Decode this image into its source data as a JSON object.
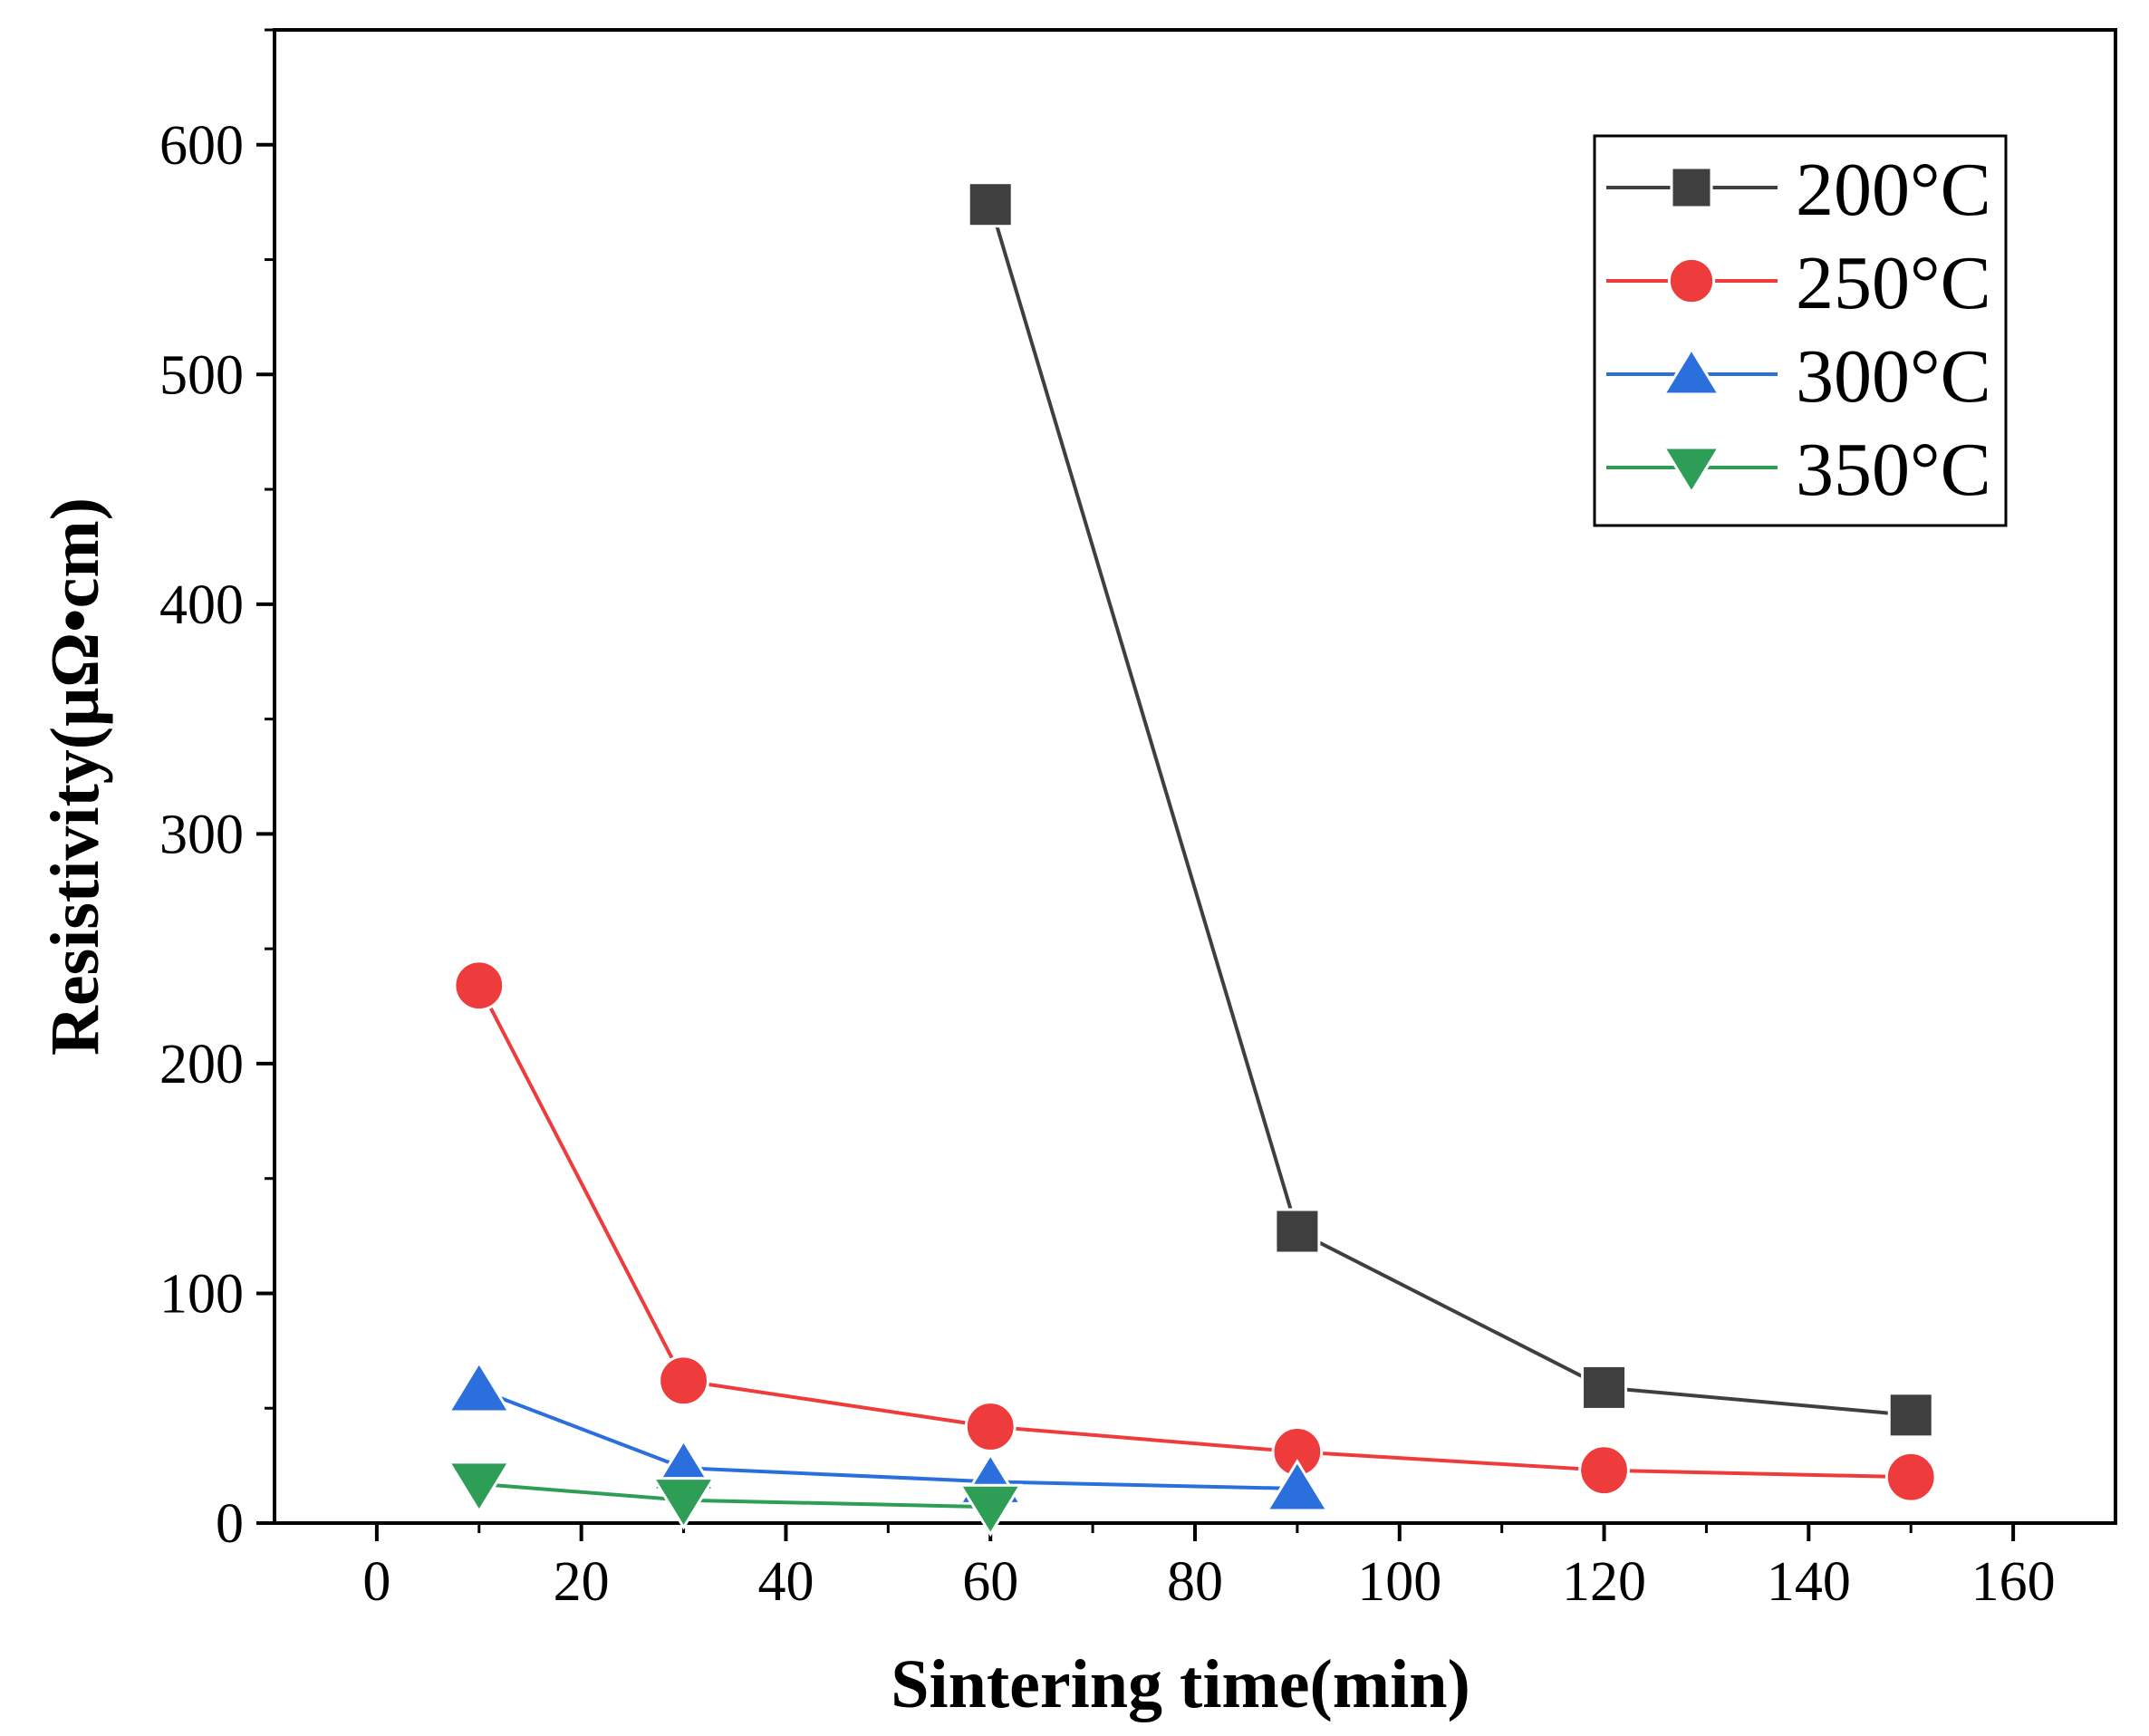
{
  "chart_data": {
    "type": "line",
    "title": "",
    "xlabel": "Sintering time(min)",
    "ylabel": "Resistivity(μΩ•cm)",
    "xlim": [
      -10,
      170
    ],
    "ylim": [
      0,
      650
    ],
    "xticks": [
      0,
      20,
      40,
      60,
      80,
      100,
      120,
      140,
      160
    ],
    "xtick_labels": [
      "0",
      "20",
      "40",
      "60",
      "80",
      "100",
      "120",
      "140",
      "160"
    ],
    "yticks": [
      0,
      100,
      200,
      300,
      400,
      500,
      600
    ],
    "ytick_labels": [
      "0",
      "100",
      "200",
      "300",
      "400",
      "500",
      "600"
    ],
    "grid": false,
    "legend_position": "top-right",
    "series": [
      {
        "name": "200°C",
        "color": "#3f3f3f",
        "marker": "square",
        "x": [
          60,
          90,
          120,
          150
        ],
        "values": [
          574,
          127,
          59,
          47
        ]
      },
      {
        "name": "250°C",
        "color": "#ee3b3b",
        "marker": "circle",
        "x": [
          10,
          30,
          60,
          90,
          120,
          150
        ],
        "values": [
          234,
          62,
          42,
          31,
          23,
          20
        ]
      },
      {
        "name": "300°C",
        "color": "#2a6fdb",
        "marker": "triangle-up",
        "x": [
          10,
          30,
          60,
          90
        ],
        "values": [
          58,
          24,
          18,
          15
        ]
      },
      {
        "name": "350°C",
        "color": "#2e9e57",
        "marker": "triangle-down",
        "x": [
          10,
          30,
          60
        ],
        "values": [
          17,
          10,
          7
        ]
      }
    ]
  }
}
